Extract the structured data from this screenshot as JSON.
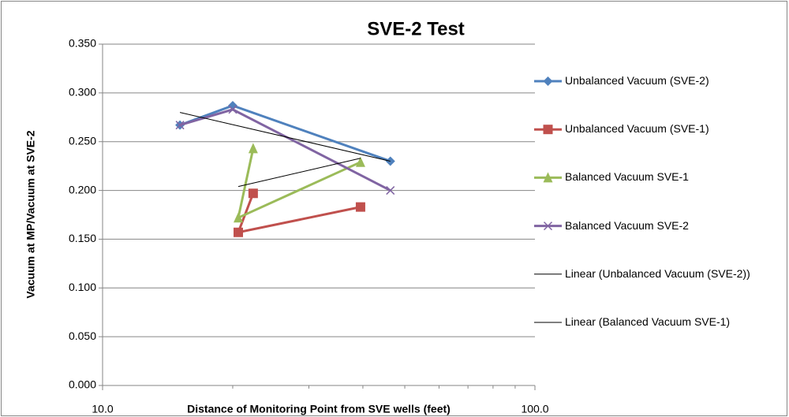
{
  "chart_data": {
    "type": "line",
    "title": "SVE-2 Test",
    "xlabel": "Distance of Monitoring Point from SVE wells (feet)",
    "ylabel": "Vacuum at MP/Vacuum at SVE-2",
    "xscale": "log",
    "xlim": [
      10,
      100
    ],
    "xticks": [
      {
        "value": 10,
        "label": "10.0"
      },
      {
        "value": 100,
        "label": "100.0"
      }
    ],
    "xminor_ticks": [
      20,
      30,
      40,
      50,
      60,
      70,
      80,
      90
    ],
    "ylim": [
      0,
      0.35
    ],
    "yticks": [
      {
        "value": 0,
        "label": "0.000"
      },
      {
        "value": 0.05,
        "label": "0.050"
      },
      {
        "value": 0.1,
        "label": "0.100"
      },
      {
        "value": 0.15,
        "label": "0.150"
      },
      {
        "value": 0.2,
        "label": "0.200"
      },
      {
        "value": 0.25,
        "label": "0.250"
      },
      {
        "value": 0.3,
        "label": "0.300"
      },
      {
        "value": 0.35,
        "label": "0.350"
      }
    ],
    "grid": true,
    "legend": "right",
    "series": [
      {
        "name": "Unbalanced Vacuum (SVE-2)",
        "color": "#4f81bd",
        "marker": "diamond",
        "x": [
          15.1,
          20.0,
          46.3
        ],
        "values": [
          0.267,
          0.287,
          0.23
        ]
      },
      {
        "name": "Unbalanced Vacuum (SVE-1)",
        "color": "#c0504d",
        "marker": "square",
        "x": [
          22.3,
          20.6,
          39.5
        ],
        "values": [
          0.197,
          0.157,
          0.183
        ]
      },
      {
        "name": "Balanced Vacuum SVE-1",
        "color": "#9bbb59",
        "marker": "triangle",
        "x": [
          22.3,
          20.6,
          39.5
        ],
        "values": [
          0.243,
          0.172,
          0.229
        ]
      },
      {
        "name": "Balanced Vacuum SVE-2",
        "color": "#8064a2",
        "marker": "x",
        "x": [
          15.1,
          20.0,
          46.3
        ],
        "values": [
          0.267,
          0.283,
          0.2
        ]
      },
      {
        "name": "Linear (Unbalanced Vacuum (SVE-2))",
        "color": "#000000",
        "marker": "none",
        "x": [
          15.1,
          46.3
        ],
        "values": [
          0.28,
          0.23
        ]
      },
      {
        "name": "Linear (Balanced Vacuum SVE-1)",
        "color": "#000000",
        "marker": "none",
        "x": [
          20.6,
          39.5
        ],
        "values": [
          0.204,
          0.233
        ]
      }
    ]
  }
}
